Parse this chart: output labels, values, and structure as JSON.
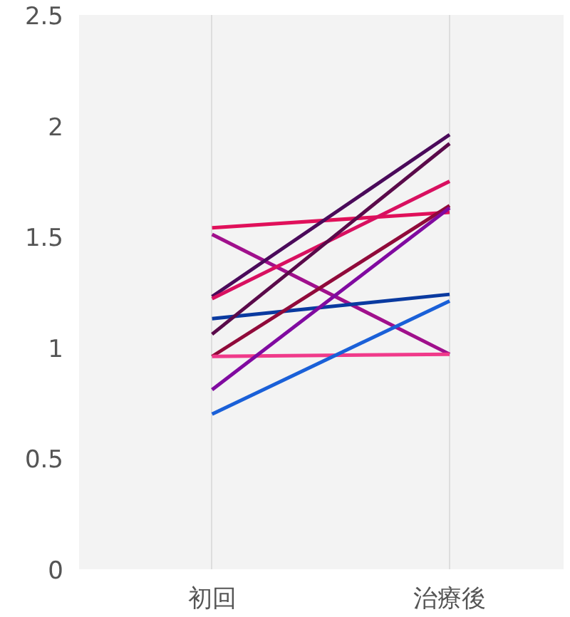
{
  "chart_data": {
    "type": "line",
    "categories": [
      "初回",
      "治療後"
    ],
    "ylim": [
      0,
      2.5
    ],
    "yticks": [
      0,
      0.5,
      1,
      1.5,
      2,
      2.5
    ],
    "grid": "x",
    "marker": "none",
    "line_style": "solid",
    "series": [
      {
        "color": "#e0105a",
        "values": [
          1.54,
          1.61
        ]
      },
      {
        "color": "#a0108c",
        "values": [
          1.51,
          0.97
        ]
      },
      {
        "color": "#4a0a5a",
        "values": [
          1.23,
          1.96
        ]
      },
      {
        "color": "#d81060",
        "values": [
          1.22,
          1.75
        ]
      },
      {
        "color": "#0a3aa0",
        "values": [
          1.13,
          1.24
        ]
      },
      {
        "color": "#5a0a4a",
        "values": [
          1.06,
          1.92
        ]
      },
      {
        "color": "#900a3a",
        "values": [
          0.96,
          1.64
        ]
      },
      {
        "color": "#f03a8a",
        "values": [
          0.96,
          0.97
        ]
      },
      {
        "color": "#800aa0",
        "values": [
          0.81,
          1.63
        ]
      },
      {
        "color": "#1a60d8",
        "values": [
          0.7,
          1.21
        ]
      }
    ]
  }
}
